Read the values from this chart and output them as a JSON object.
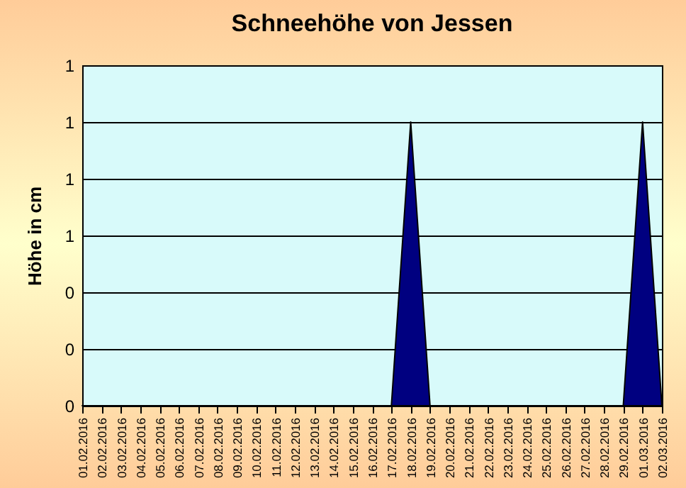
{
  "chart_data": {
    "type": "area",
    "title": "Schneehöhe von Jessen",
    "ylabel": "Höhe in cm",
    "categories": [
      "01.02.2016",
      "02.02.2016",
      "03.02.2016",
      "04.02.2016",
      "05.02.2016",
      "06.02.2016",
      "07.02.2016",
      "08.02.2016",
      "09.02.2016",
      "10.02.2016",
      "11.02.2016",
      "12.02.2016",
      "13.02.2016",
      "14.02.2016",
      "15.02.2016",
      "16.02.2016",
      "17.02.2016",
      "18.02.2016",
      "19.02.2016",
      "20.02.2016",
      "21.02.2016",
      "22.02.2016",
      "23.02.2016",
      "24.02.2016",
      "25.02.2016",
      "26.02.2016",
      "27.02.2016",
      "28.02.2016",
      "29.02.2016",
      "01.03.2016",
      "02.03.2016"
    ],
    "series": [
      {
        "color": "#000080",
        "values": [
          0,
          0,
          0,
          0,
          0,
          0,
          0,
          0,
          0,
          0,
          0,
          0,
          0,
          0,
          0,
          0,
          0,
          1,
          0,
          0,
          0,
          0,
          0,
          0,
          0,
          0,
          0,
          0,
          0,
          1,
          0
        ]
      }
    ],
    "ylim": [
      0,
      1.2
    ],
    "yticks": [
      {
        "value": 0,
        "label": "0"
      },
      {
        "value": 0.2,
        "label": "0"
      },
      {
        "value": 0.4,
        "label": "0"
      },
      {
        "value": 0.6,
        "label": "1"
      },
      {
        "value": 0.8,
        "label": "1"
      },
      {
        "value": 1,
        "label": "1"
      },
      {
        "value": 1.2,
        "label": "1"
      }
    ],
    "grid": "y"
  }
}
